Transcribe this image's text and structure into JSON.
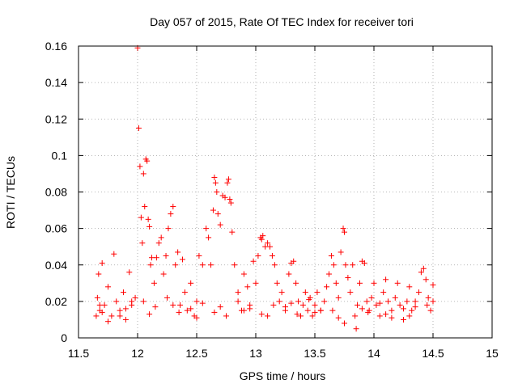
{
  "chart_data": {
    "type": "scatter",
    "title": "Day 057 of 2015, Rate Of TEC Index for receiver tori",
    "xlabel": "GPS time / hours",
    "ylabel": "ROTI / TECUs",
    "xlim": [
      11.5,
      15
    ],
    "ylim": [
      0,
      0.16
    ],
    "xticks": [
      "11.5",
      "12",
      "12.5",
      "13",
      "13.5",
      "14",
      "14.5",
      "15"
    ],
    "yticks": [
      "0",
      "0.02",
      "0.04",
      "0.06",
      "0.08",
      "0.1",
      "0.12",
      "0.14",
      "0.16"
    ],
    "grid": true,
    "marker": "+",
    "color": "#ff0000",
    "series": [
      {
        "name": "ROTI",
        "x": [
          11.65,
          11.66,
          11.67,
          11.68,
          11.7,
          11.72,
          11.75,
          11.78,
          11.8,
          11.82,
          11.85,
          11.88,
          11.9,
          11.93,
          11.95,
          11.98,
          12.0,
          12.01,
          12.02,
          12.03,
          12.04,
          12.05,
          12.06,
          12.07,
          12.08,
          12.09,
          12.1,
          12.11,
          12.12,
          12.14,
          12.16,
          12.18,
          12.2,
          12.22,
          12.24,
          12.26,
          12.28,
          12.3,
          12.32,
          12.34,
          12.36,
          12.38,
          12.4,
          12.42,
          12.45,
          12.48,
          12.5,
          12.52,
          12.55,
          12.58,
          12.6,
          12.62,
          12.64,
          12.65,
          12.66,
          12.67,
          12.68,
          12.7,
          12.72,
          12.74,
          12.76,
          12.77,
          12.78,
          12.79,
          12.8,
          12.82,
          12.85,
          12.88,
          12.9,
          12.93,
          12.95,
          12.98,
          13.0,
          13.02,
          13.04,
          13.05,
          13.06,
          13.08,
          13.1,
          13.12,
          13.14,
          13.16,
          13.18,
          13.2,
          13.22,
          13.25,
          13.28,
          13.3,
          13.32,
          13.34,
          13.36,
          13.38,
          13.4,
          13.42,
          13.44,
          13.46,
          13.48,
          13.5,
          13.52,
          13.55,
          13.58,
          13.6,
          13.62,
          13.64,
          13.66,
          13.68,
          13.7,
          13.72,
          13.74,
          13.75,
          13.76,
          13.78,
          13.8,
          13.82,
          13.84,
          13.86,
          13.88,
          13.9,
          13.92,
          13.94,
          13.96,
          13.98,
          14.0,
          14.02,
          14.05,
          14.08,
          14.1,
          14.12,
          14.15,
          14.18,
          14.2,
          14.22,
          14.25,
          14.28,
          14.3,
          14.32,
          14.35,
          14.38,
          14.4,
          14.42,
          14.44,
          14.46,
          14.48,
          14.5,
          11.7,
          11.9,
          12.1,
          12.3,
          12.5,
          12.7,
          12.9,
          13.1,
          13.3,
          13.5,
          13.7,
          13.9,
          14.1,
          14.3,
          14.5,
          11.75,
          11.95,
          12.15,
          12.35,
          12.55,
          12.75,
          12.95,
          13.15,
          13.35,
          13.55,
          13.75,
          13.95,
          14.15,
          14.35,
          11.68,
          11.85,
          12.05,
          12.25,
          12.45,
          12.65,
          12.85,
          13.05,
          13.25,
          13.45,
          13.65,
          13.85,
          14.05,
          14.25,
          14.45
        ],
        "y": [
          0.012,
          0.022,
          0.035,
          0.015,
          0.041,
          0.018,
          0.028,
          0.012,
          0.046,
          0.02,
          0.015,
          0.025,
          0.01,
          0.036,
          0.018,
          0.022,
          0.159,
          0.115,
          0.094,
          0.066,
          0.052,
          0.09,
          0.072,
          0.098,
          0.097,
          0.065,
          0.061,
          0.04,
          0.044,
          0.03,
          0.044,
          0.052,
          0.055,
          0.035,
          0.045,
          0.06,
          0.068,
          0.072,
          0.04,
          0.047,
          0.018,
          0.043,
          0.025,
          0.015,
          0.03,
          0.012,
          0.02,
          0.045,
          0.04,
          0.06,
          0.055,
          0.04,
          0.07,
          0.088,
          0.085,
          0.08,
          0.068,
          0.062,
          0.078,
          0.077,
          0.085,
          0.087,
          0.076,
          0.074,
          0.058,
          0.04,
          0.025,
          0.015,
          0.035,
          0.028,
          0.018,
          0.042,
          0.03,
          0.045,
          0.055,
          0.054,
          0.056,
          0.05,
          0.052,
          0.05,
          0.045,
          0.04,
          0.03,
          0.02,
          0.025,
          0.015,
          0.035,
          0.041,
          0.042,
          0.03,
          0.02,
          0.012,
          0.018,
          0.025,
          0.015,
          0.022,
          0.012,
          0.018,
          0.025,
          0.015,
          0.02,
          0.028,
          0.035,
          0.045,
          0.04,
          0.03,
          0.022,
          0.047,
          0.06,
          0.058,
          0.04,
          0.033,
          0.025,
          0.04,
          0.012,
          0.018,
          0.03,
          0.042,
          0.041,
          0.02,
          0.015,
          0.022,
          0.03,
          0.018,
          0.012,
          0.025,
          0.032,
          0.02,
          0.015,
          0.022,
          0.03,
          0.018,
          0.01,
          0.02,
          0.028,
          0.015,
          0.02,
          0.025,
          0.036,
          0.038,
          0.032,
          0.022,
          0.015,
          0.029,
          0.014,
          0.016,
          0.013,
          0.018,
          0.011,
          0.017,
          0.015,
          0.012,
          0.019,
          0.014,
          0.011,
          0.016,
          0.013,
          0.012,
          0.02,
          0.009,
          0.02,
          0.017,
          0.014,
          0.019,
          0.012,
          0.016,
          0.018,
          0.013,
          0.015,
          0.008,
          0.014,
          0.011,
          0.017,
          0.018,
          0.012,
          0.02,
          0.022,
          0.016,
          0.014,
          0.02,
          0.013,
          0.017,
          0.021,
          0.015,
          0.005,
          0.019,
          0.016,
          0.018
        ]
      }
    ]
  }
}
